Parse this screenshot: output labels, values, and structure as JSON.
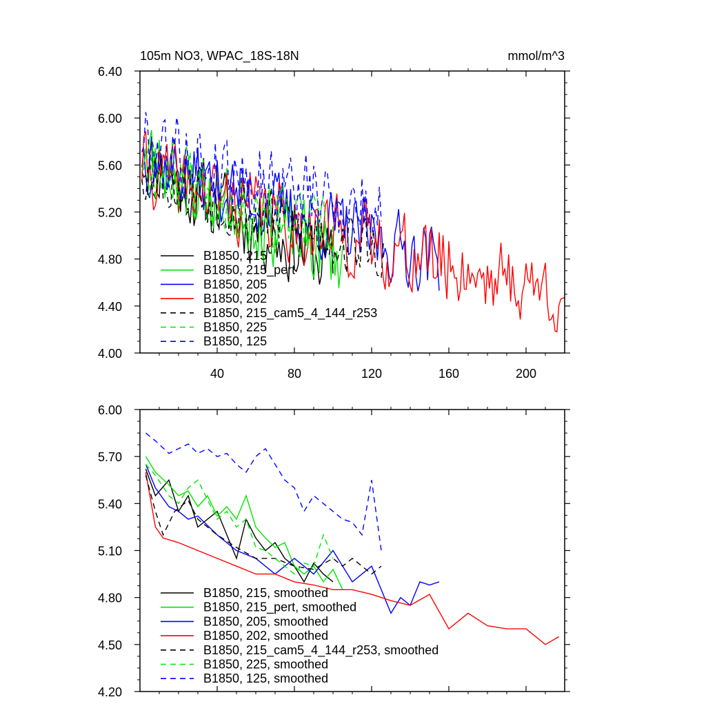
{
  "chart_data": [
    {
      "type": "line",
      "title_left": "105m NO3, WPAC_18S-18N",
      "title_right": "mmol/m^3",
      "xlim": [
        0,
        220
      ],
      "ylim": [
        4.0,
        6.4
      ],
      "xticks": [
        40,
        80,
        120,
        160,
        200
      ],
      "xticklabels": [
        "40",
        "80",
        "120",
        "160",
        "200"
      ],
      "yticks": [
        4.0,
        4.4,
        4.8,
        5.2,
        5.6,
        6.0,
        6.4
      ],
      "yticklabels": [
        "4.00",
        "4.40",
        "4.80",
        "5.20",
        "5.60",
        "6.00",
        "6.40"
      ],
      "series": [
        {
          "name": "B1850, 215",
          "color": "#000000",
          "dash": "",
          "n": 100,
          "start": 5.7,
          "end": 4.75,
          "amp": 0.3,
          "seed": 11
        },
        {
          "name": "B1850, 215_pert",
          "color": "#00e600",
          "dash": "",
          "n": 105,
          "start": 5.75,
          "end": 4.8,
          "amp": 0.3,
          "seed": 23
        },
        {
          "name": "B1850, 205",
          "color": "#0000ff",
          "dash": "",
          "n": 155,
          "start": 5.72,
          "end": 4.8,
          "amp": 0.28,
          "seed": 37
        },
        {
          "name": "B1850, 202",
          "color": "#ff0000",
          "dash": "",
          "n": 220,
          "start": 5.6,
          "end": 4.5,
          "amp": 0.3,
          "seed": 41
        },
        {
          "name": "B1850, 215_cam5_4_144_r253",
          "color": "#000000",
          "dash": "8 6",
          "n": 127,
          "start": 5.6,
          "end": 4.85,
          "amp": 0.25,
          "seed": 53
        },
        {
          "name": "B1850, 225",
          "color": "#00e600",
          "dash": "8 6",
          "n": 100,
          "start": 5.7,
          "end": 5.0,
          "amp": 0.28,
          "seed": 67
        },
        {
          "name": "B1850, 125",
          "color": "#0000ff",
          "dash": "8 6",
          "n": 125,
          "start": 5.85,
          "end": 5.2,
          "amp": 0.3,
          "seed": 79
        }
      ]
    },
    {
      "type": "line",
      "xlim": [
        0,
        220
      ],
      "ylim": [
        4.2,
        6.0
      ],
      "xticks": [
        40,
        80,
        120,
        160,
        200
      ],
      "yticks": [
        4.2,
        4.5,
        4.8,
        5.1,
        5.4,
        5.7,
        6.0
      ],
      "yticklabels": [
        "4.20",
        "4.50",
        "4.80",
        "5.10",
        "5.40",
        "5.70",
        "6.00"
      ],
      "series": [
        {
          "name": "B1850, 215, smoothed",
          "color": "#000000",
          "dash": "",
          "x": [
            3,
            8,
            15,
            20,
            25,
            30,
            40,
            50,
            55,
            60,
            65,
            70,
            75,
            80,
            85,
            90,
            95,
            100
          ],
          "y": [
            5.62,
            5.45,
            5.55,
            5.35,
            5.45,
            5.25,
            5.35,
            5.05,
            5.3,
            5.18,
            5.1,
            5.15,
            5.05,
            5.0,
            4.9,
            5.02,
            4.95,
            4.9
          ]
        },
        {
          "name": "B1850, 215_pert, smoothed",
          "color": "#00e600",
          "dash": "",
          "x": [
            3,
            8,
            15,
            20,
            25,
            30,
            35,
            40,
            45,
            50,
            55,
            60,
            65,
            70,
            75,
            80,
            85,
            90,
            95,
            100,
            105
          ],
          "y": [
            5.7,
            5.6,
            5.52,
            5.45,
            5.48,
            5.38,
            5.45,
            5.32,
            5.38,
            5.3,
            5.45,
            5.25,
            5.18,
            5.12,
            5.15,
            5.0,
            4.95,
            5.0,
            4.9,
            4.98,
            4.85
          ]
        },
        {
          "name": "B1850, 205, smoothed",
          "color": "#0000ff",
          "dash": "",
          "x": [
            3,
            8,
            15,
            20,
            25,
            30,
            40,
            50,
            60,
            70,
            80,
            90,
            100,
            110,
            115,
            120,
            125,
            130,
            135,
            140,
            145,
            150,
            155
          ],
          "y": [
            5.65,
            5.5,
            5.38,
            5.35,
            5.3,
            5.32,
            5.2,
            5.1,
            5.05,
            4.95,
            5.05,
            4.95,
            5.1,
            4.9,
            4.95,
            5.0,
            4.85,
            4.7,
            4.8,
            4.75,
            4.9,
            4.88,
            4.9
          ]
        },
        {
          "name": "B1850, 202, smoothed",
          "color": "#ff0000",
          "dash": "",
          "x": [
            3,
            8,
            12,
            20,
            30,
            40,
            50,
            60,
            70,
            80,
            90,
            100,
            110,
            120,
            130,
            140,
            150,
            160,
            170,
            180,
            190,
            200,
            210,
            217
          ],
          "y": [
            5.6,
            5.25,
            5.18,
            5.15,
            5.1,
            5.05,
            5.0,
            4.95,
            4.95,
            4.9,
            4.88,
            4.85,
            4.85,
            4.82,
            4.78,
            4.75,
            4.82,
            4.6,
            4.7,
            4.62,
            4.6,
            4.6,
            4.5,
            4.55
          ]
        },
        {
          "name": "B1850, 215_cam5_4_144_r253, smoothed",
          "color": "#000000",
          "dash": "8 6",
          "x": [
            3,
            8,
            12,
            18,
            25,
            30,
            40,
            50,
            60,
            70,
            80,
            90,
            100,
            105,
            110,
            115,
            120,
            125
          ],
          "y": [
            5.58,
            5.35,
            5.2,
            5.35,
            5.42,
            5.3,
            5.2,
            5.12,
            5.05,
            5.05,
            5.0,
            4.98,
            5.05,
            5.0,
            5.05,
            5.0,
            4.95,
            5.0
          ]
        },
        {
          "name": "B1850, 225, smoothed",
          "color": "#00e600",
          "dash": "8 6",
          "x": [
            3,
            8,
            15,
            20,
            25,
            30,
            40,
            45,
            50,
            55,
            60,
            65,
            70,
            75,
            80,
            85,
            90,
            95,
            100
          ],
          "y": [
            5.65,
            5.58,
            5.45,
            5.4,
            5.5,
            5.55,
            5.3,
            5.35,
            5.25,
            5.3,
            5.12,
            5.1,
            5.05,
            5.0,
            4.95,
            5.02,
            5.0,
            5.2,
            5.05
          ]
        },
        {
          "name": "B1850, 125, smoothed",
          "color": "#0000ff",
          "dash": "8 6",
          "x": [
            3,
            8,
            15,
            20,
            25,
            30,
            35,
            40,
            45,
            50,
            55,
            60,
            65,
            70,
            75,
            80,
            85,
            90,
            95,
            100,
            105,
            110,
            115,
            120,
            125
          ],
          "y": [
            5.85,
            5.8,
            5.72,
            5.75,
            5.78,
            5.72,
            5.75,
            5.7,
            5.72,
            5.65,
            5.6,
            5.7,
            5.75,
            5.65,
            5.55,
            5.5,
            5.35,
            5.45,
            5.4,
            5.35,
            5.3,
            5.28,
            5.2,
            5.55,
            5.1
          ]
        }
      ]
    }
  ]
}
